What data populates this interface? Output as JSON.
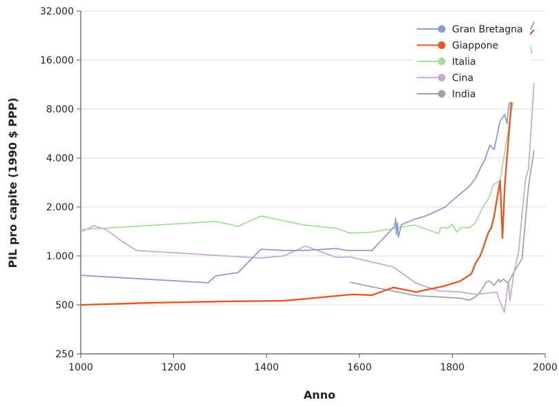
{
  "chart_data": {
    "type": "line",
    "xlabel": "Anno",
    "ylabel": "PIL pro capite (1990 $ PPP)",
    "xlim": [
      1000,
      2000
    ],
    "ylim": [
      250,
      32000
    ],
    "yscale": "log2",
    "grid": true,
    "legend_position": "top-right",
    "x_ticks": [
      1000,
      1200,
      1400,
      1600,
      1800,
      2000
    ],
    "x_tick_labels": [
      "1000",
      "1200",
      "1400",
      "1600",
      "1800",
      "2000"
    ],
    "y_ticks": [
      250,
      500,
      1000,
      2000,
      4000,
      8000,
      16000,
      32000
    ],
    "y_tick_labels": [
      "250",
      "500",
      "1.000",
      "2.000",
      "4.000",
      "8.000",
      "16.000",
      "32.000"
    ],
    "series": [
      {
        "name": "Gran Bretagna",
        "color": "#8e9ccb",
        "x": [
          1000,
          1274,
          1291,
          1339,
          1388,
          1437,
          1480,
          1550,
          1574,
          1627,
          1676,
          1678,
          1680,
          1682,
          1684,
          1690,
          1700,
          1718,
          1740,
          1760,
          1785,
          1797,
          1815,
          1837,
          1850,
          1859,
          1870,
          1881,
          1890,
          1903,
          1913,
          1918,
          1921,
          1933,
          1948,
          1960,
          1970,
          1976
        ],
        "y": [
          760,
          684,
          754,
          790,
          1100,
          1080,
          1080,
          1110,
          1080,
          1080,
          1520,
          1700,
          1350,
          1600,
          1300,
          1550,
          1600,
          1680,
          1750,
          1850,
          2000,
          2150,
          2380,
          2680,
          3000,
          3400,
          3900,
          4800,
          4500,
          6750,
          7400,
          6500,
          8200,
          12200,
          20800,
          24000,
          25000,
          27500
        ]
      },
      {
        "name": "Giappone",
        "color": "#e25a2a",
        "x": [
          1000,
          1150,
          1300,
          1437,
          1500,
          1584,
          1627,
          1673,
          1722,
          1780,
          1817,
          1841,
          1850,
          1860,
          1866,
          1872,
          1878,
          1884,
          1890,
          1894,
          1903,
          1908,
          1913,
          1933,
          1951,
          1960,
          1967,
          1976
        ],
        "y": [
          500,
          515,
          525,
          530,
          550,
          580,
          574,
          640,
          600,
          650,
          700,
          775,
          900,
          1000,
          1110,
          1250,
          1400,
          1490,
          1750,
          2060,
          2900,
          1290,
          2700,
          14100,
          19800,
          22000,
          23000,
          24500
        ]
      },
      {
        "name": "Italia",
        "color": "#a9dba1",
        "x": [
          1000,
          1291,
          1339,
          1388,
          1480,
          1550,
          1580,
          1627,
          1718,
          1771,
          1775,
          1790,
          1800,
          1810,
          1820,
          1837,
          1850,
          1866,
          1880,
          1888,
          1903,
          1925,
          1952,
          1966,
          1972
        ],
        "y": [
          1450,
          1630,
          1520,
          1760,
          1550,
          1480,
          1380,
          1400,
          1550,
          1370,
          1500,
          1480,
          1560,
          1400,
          1500,
          1490,
          1600,
          2000,
          2300,
          2730,
          2900,
          7100,
          18800,
          19800,
          17500
        ]
      },
      {
        "name": "Cina",
        "color": "#c9aad2",
        "x": [
          1000,
          1027,
          1053,
          1089,
          1120,
          1388,
          1437,
          1484,
          1550,
          1580,
          1673,
          1722,
          1770,
          1817,
          1851,
          1896,
          1899,
          1912,
          1921,
          1924,
          1933,
          1943,
          1950,
          1958,
          1964,
          1976
        ],
        "y": [
          1400,
          1530,
          1460,
          1230,
          1080,
          970,
          1000,
          1150,
          980,
          985,
          855,
          680,
          610,
          600,
          580,
          600,
          560,
          450,
          700,
          530,
          800,
          1060,
          1800,
          3000,
          3400,
          11600
        ]
      },
      {
        "name": "India",
        "color": "#a3a3a3",
        "x": [
          1580,
          1627,
          1722,
          1817,
          1837,
          1850,
          1860,
          1866,
          1873,
          1880,
          1890,
          1900,
          1903,
          1910,
          1920,
          1933,
          1950,
          1964,
          1976
        ],
        "y": [
          690,
          645,
          570,
          550,
          535,
          560,
          600,
          640,
          690,
          700,
          660,
          720,
          690,
          720,
          680,
          800,
          960,
          2680,
          4450
        ]
      }
    ]
  }
}
